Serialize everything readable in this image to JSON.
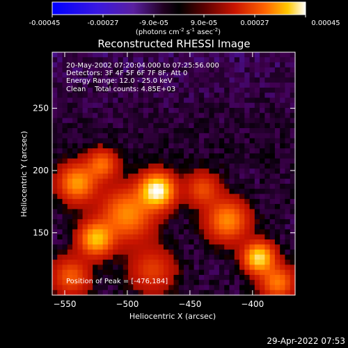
{
  "colorbar": {
    "ticks": [
      "-0.00045",
      "-0.00027",
      "-9.0e-05",
      "9.0e-05",
      "0.00027",
      "0.00045"
    ],
    "units_main": "(photons cm",
    "units_sup1": "-2",
    "units_s": " s",
    "units_sup2": "-1",
    "units_asec": " asec",
    "units_sup3": "-2",
    "units_end": ")"
  },
  "annotations": {
    "time_range": "20-May-2002 07:20:04.000 to 07:25:56.000",
    "detectors": "Detectors: 3F 4F 5F 6F 7F 8F, Att 0",
    "energy": "Energy Range: 12.0 - 25.0 keV",
    "clean": "Clean    Total counts: 4.85E+03",
    "peak": "Position of Peak = [-476,184]"
  },
  "footer": {
    "timestamp": "29-Apr-2022 07:53"
  },
  "chart_data": {
    "type": "heatmap",
    "title": "Reconstructed RHESSI Image",
    "xlabel": "Heliocentric X (arcsec)",
    "ylabel": "Heliocentric Y (arcsec)",
    "xlim": [
      -560,
      -366
    ],
    "ylim": [
      100,
      295
    ],
    "x_ticks": [
      -550,
      -500,
      -450,
      -400
    ],
    "y_ticks": [
      150,
      200,
      250
    ],
    "colormap": [
      "#0000ff",
      "#5020c8",
      "#400050",
      "#000000",
      "#5a0000",
      "#c81400",
      "#ff6400",
      "#ffc800",
      "#ffffff"
    ],
    "peak": [
      -476,
      184
    ],
    "sources": [
      {
        "x": -476,
        "y": 184,
        "amp": 1.0,
        "sigma": 9
      },
      {
        "x": -395,
        "y": 130,
        "amp": 0.85,
        "sigma": 8
      },
      {
        "x": -525,
        "y": 145,
        "amp": 0.7,
        "sigma": 9
      },
      {
        "x": -420,
        "y": 160,
        "amp": 0.55,
        "sigma": 11
      },
      {
        "x": -540,
        "y": 190,
        "amp": 0.6,
        "sigma": 10
      },
      {
        "x": -500,
        "y": 165,
        "amp": 0.55,
        "sigma": 14
      },
      {
        "x": -440,
        "y": 185,
        "amp": 0.35,
        "sigma": 9
      },
      {
        "x": -545,
        "y": 115,
        "amp": 0.4,
        "sigma": 10
      },
      {
        "x": -480,
        "y": 120,
        "amp": 0.3,
        "sigma": 12
      },
      {
        "x": -380,
        "y": 110,
        "amp": 0.5,
        "sigma": 9
      },
      {
        "x": -520,
        "y": 205,
        "amp": 0.45,
        "sigma": 8
      }
    ]
  }
}
